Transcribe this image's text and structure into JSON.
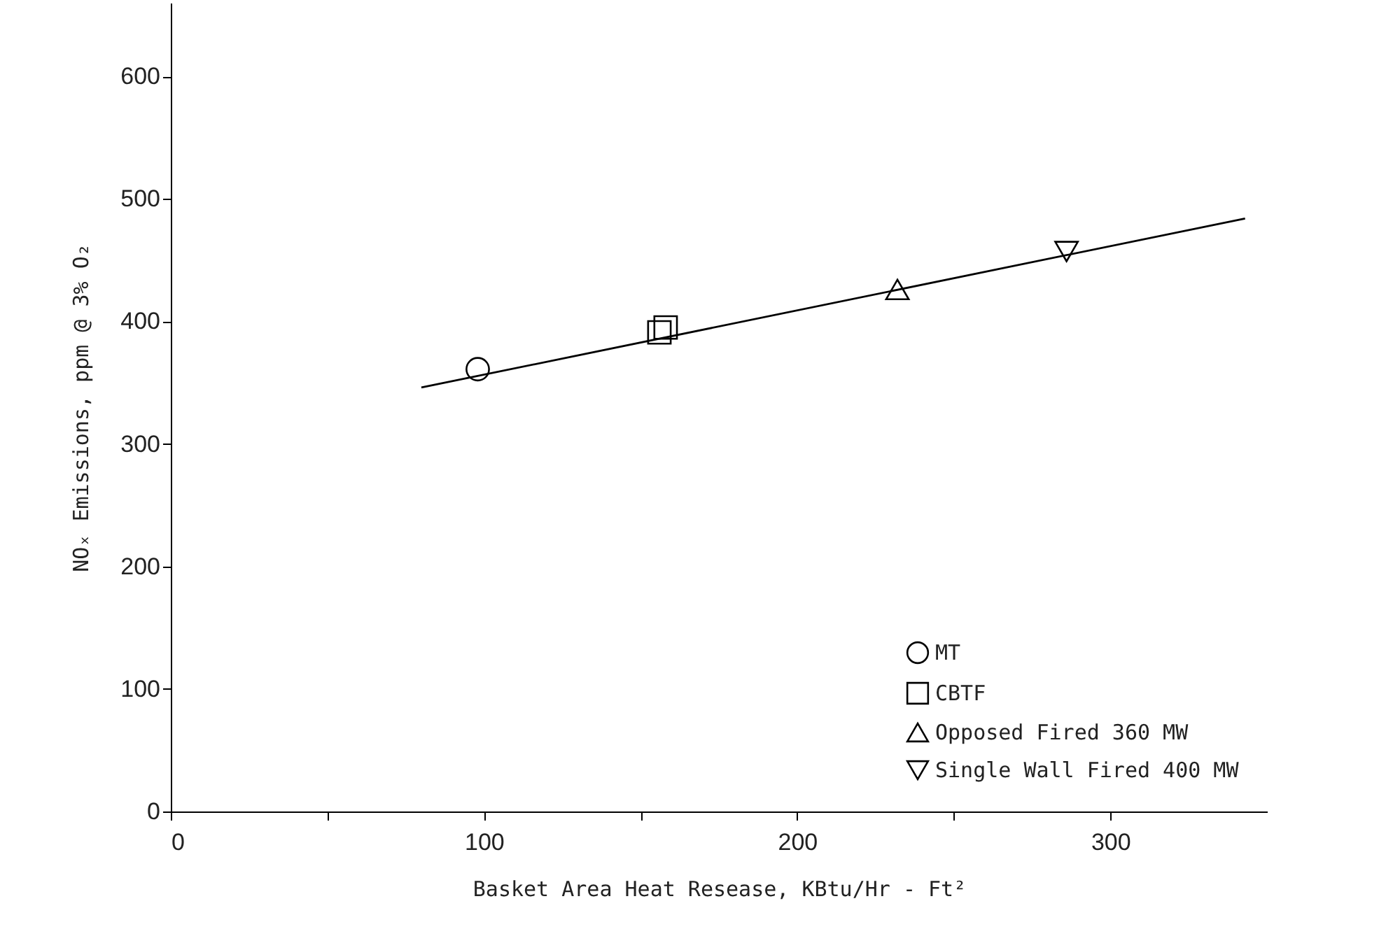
{
  "chart_data": {
    "type": "scatter",
    "xlabel": "Basket Area Heat Resease, KBtu/Hr - Ft²",
    "ylabel": "NOₓ Emissions, ppm @ 3% O₂",
    "xlim": [
      0,
      350
    ],
    "ylim": [
      0,
      660
    ],
    "xticks": [
      0,
      {
        "value": 50,
        "label": null
      },
      100,
      {
        "value": 150,
        "label": null
      },
      200,
      {
        "value": 250,
        "label": null
      },
      300
    ],
    "yticks": [
      0,
      100,
      200,
      300,
      400,
      500,
      600
    ],
    "grid": false,
    "legend": "bottom right",
    "series": [
      {
        "name": "MT",
        "color": "#000000",
        "marker": "circle",
        "x": [
          98
        ],
        "values": [
          361
        ]
      },
      {
        "name": "CBTF",
        "color": "#000000",
        "marker": "square",
        "x": [
          156,
          158
        ],
        "values": [
          391,
          395
        ]
      },
      {
        "name": "Opposed Fired 360 MW",
        "color": "#000000",
        "marker": "triangle",
        "x": [
          232
        ],
        "values": [
          426
        ]
      },
      {
        "name": "Single Wall Fired 400 MW",
        "color": "#000000",
        "marker": "triangle-down",
        "x": [
          286
        ],
        "values": [
          457
        ]
      },
      {
        "type": "line",
        "color": "#000000",
        "line_style": "solid",
        "x": [
          80,
          343
        ],
        "values": [
          346,
          484
        ]
      }
    ]
  }
}
